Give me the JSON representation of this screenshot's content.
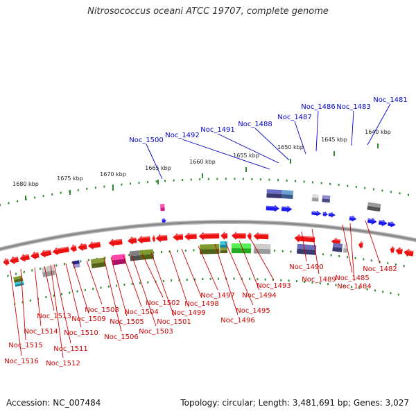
{
  "title": "Nitrosococcus oceani ATCC 19707, complete genome",
  "footer": {
    "accession_text": "Accession: NC_007484",
    "summary_text": "Topology: circular; Length: 3,481,691 bp; Genes: 3,027"
  },
  "colors": {
    "backbone": "#8a8a8a",
    "ticks": "#2e8b2e",
    "forward_label": "#0000cc",
    "reverse_label": "#cc0000",
    "red_gene": "#ee1111",
    "blue_gene": "#1a1aee"
  },
  "scale_labels": [
    "1680 kbp",
    "1675 kbp",
    "1670 kbp",
    "1665 kbp",
    "1660 kbp",
    "1655 kbp",
    "1650 kbp",
    "1645 kbp",
    "1640 kbp"
  ],
  "forward_genes": [
    "Noc_1500",
    "Noc_1492",
    "Noc_1491",
    "Noc_1488",
    "Noc_1487",
    "Noc_1486",
    "Noc_1483",
    "Noc_1481"
  ],
  "reverse_genes": [
    "Noc_1516",
    "Noc_1515",
    "Noc_1514",
    "Noc_1513",
    "Noc_1512",
    "Noc_1511",
    "Noc_1510",
    "Noc_1509",
    "Noc_1508",
    "Noc_1506",
    "Noc_1505",
    "Noc_1504",
    "Noc_1503",
    "Noc_1502",
    "Noc_1501",
    "Noc_1499",
    "Noc_1498",
    "Noc_1497",
    "Noc_1496",
    "Noc_1495",
    "Noc_1494",
    "Noc_1493",
    "Noc_1490",
    "Noc_1489",
    "Noc_1485",
    "Noc_1484",
    "Noc_1482"
  ]
}
